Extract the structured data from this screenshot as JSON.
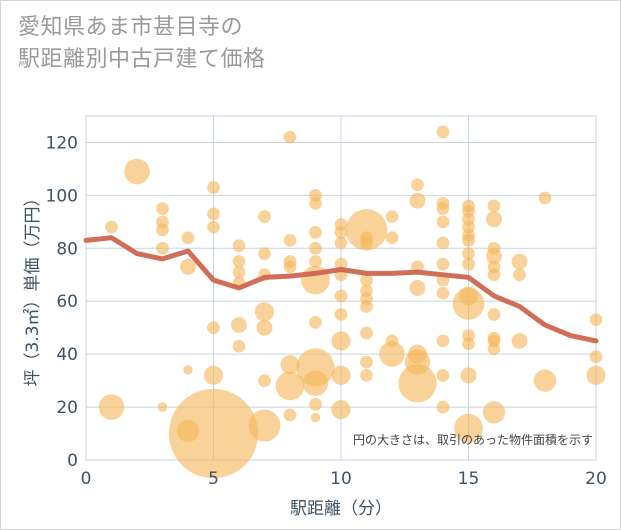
{
  "header": {
    "title_line1": "愛知県あま市甚目寺の",
    "title_line2": "駅距離別中古戸建て価格"
  },
  "colors": {
    "bubble": "#f5b75a",
    "line": "#d0654f",
    "grid": "#c8d4e0",
    "tick_text": "#3d5366"
  },
  "chart_data": {
    "type": "scatter",
    "title": "愛知県あま市甚目寺の駅距離別中古戸建て価格",
    "xlabel": "駅距離（分）",
    "ylabel": "坪（3.3㎡）単価（万円）",
    "xlim": [
      0,
      20
    ],
    "ylim": [
      0,
      130
    ],
    "x_ticks": [
      "0",
      "5",
      "10",
      "15",
      "20"
    ],
    "y_ticks": [
      "0",
      "20",
      "40",
      "60",
      "80",
      "100",
      "120"
    ],
    "annotation": "円の大きさは、取引のあった物件面積を示す",
    "series": [
      {
        "name": "trend",
        "type": "line",
        "x": [
          0,
          1,
          2,
          3,
          4,
          5,
          6,
          7,
          8,
          9,
          10,
          11,
          12,
          13,
          14,
          15,
          16,
          17,
          18,
          19,
          20
        ],
        "y": [
          83,
          84,
          78,
          76,
          79,
          68,
          65,
          69,
          69.5,
          70.5,
          72,
          70.5,
          70.5,
          71,
          70,
          69,
          62,
          58,
          51,
          47,
          45
        ]
      },
      {
        "name": "transactions",
        "type": "bubble",
        "points": [
          {
            "x": 1,
            "y": 88,
            "s": 2
          },
          {
            "x": 1,
            "y": 20,
            "s": 4
          },
          {
            "x": 2,
            "y": 109,
            "s": 4
          },
          {
            "x": 3,
            "y": 95,
            "s": 2
          },
          {
            "x": 3,
            "y": 90,
            "s": 2
          },
          {
            "x": 3,
            "y": 87,
            "s": 2
          },
          {
            "x": 3,
            "y": 80,
            "s": 2
          },
          {
            "x": 3,
            "y": 20,
            "s": 1.5
          },
          {
            "x": 4,
            "y": 84,
            "s": 2
          },
          {
            "x": 4,
            "y": 73,
            "s": 2.5
          },
          {
            "x": 4,
            "y": 34,
            "s": 1.5
          },
          {
            "x": 4,
            "y": 11,
            "s": 3.5
          },
          {
            "x": 5,
            "y": 103,
            "s": 2
          },
          {
            "x": 5,
            "y": 93,
            "s": 2
          },
          {
            "x": 5,
            "y": 88,
            "s": 2
          },
          {
            "x": 5,
            "y": 50,
            "s": 2
          },
          {
            "x": 5,
            "y": 32,
            "s": 3
          },
          {
            "x": 5,
            "y": 10,
            "s": 14
          },
          {
            "x": 6,
            "y": 81,
            "s": 2
          },
          {
            "x": 6,
            "y": 75,
            "s": 2
          },
          {
            "x": 6,
            "y": 71,
            "s": 2
          },
          {
            "x": 6,
            "y": 67,
            "s": 2
          },
          {
            "x": 6,
            "y": 51,
            "s": 2.5
          },
          {
            "x": 6,
            "y": 43,
            "s": 2
          },
          {
            "x": 7,
            "y": 92,
            "s": 2
          },
          {
            "x": 7,
            "y": 78,
            "s": 2
          },
          {
            "x": 7,
            "y": 70,
            "s": 2
          },
          {
            "x": 7,
            "y": 56,
            "s": 3
          },
          {
            "x": 7,
            "y": 50,
            "s": 2.5
          },
          {
            "x": 7,
            "y": 30,
            "s": 2
          },
          {
            "x": 7,
            "y": 13,
            "s": 5
          },
          {
            "x": 8,
            "y": 122,
            "s": 2
          },
          {
            "x": 8,
            "y": 83,
            "s": 2
          },
          {
            "x": 8,
            "y": 75,
            "s": 2
          },
          {
            "x": 8,
            "y": 73,
            "s": 2
          },
          {
            "x": 8,
            "y": 36,
            "s": 3
          },
          {
            "x": 8,
            "y": 28,
            "s": 4.5
          },
          {
            "x": 8,
            "y": 17,
            "s": 2
          },
          {
            "x": 9,
            "y": 100,
            "s": 2
          },
          {
            "x": 9,
            "y": 97,
            "s": 2
          },
          {
            "x": 9,
            "y": 86,
            "s": 2
          },
          {
            "x": 9,
            "y": 80,
            "s": 2
          },
          {
            "x": 9,
            "y": 75,
            "s": 2
          },
          {
            "x": 9,
            "y": 68,
            "s": 4.5
          },
          {
            "x": 9,
            "y": 52,
            "s": 2
          },
          {
            "x": 9,
            "y": 35,
            "s": 6
          },
          {
            "x": 9,
            "y": 29,
            "s": 4
          },
          {
            "x": 9,
            "y": 21,
            "s": 2
          },
          {
            "x": 9,
            "y": 16,
            "s": 1.5
          },
          {
            "x": 10,
            "y": 89,
            "s": 2
          },
          {
            "x": 10,
            "y": 86,
            "s": 2
          },
          {
            "x": 10,
            "y": 82,
            "s": 2
          },
          {
            "x": 10,
            "y": 74,
            "s": 2
          },
          {
            "x": 10,
            "y": 70,
            "s": 2
          },
          {
            "x": 10,
            "y": 62,
            "s": 2
          },
          {
            "x": 10,
            "y": 55,
            "s": 2
          },
          {
            "x": 10,
            "y": 45,
            "s": 3
          },
          {
            "x": 10,
            "y": 32,
            "s": 3
          },
          {
            "x": 10,
            "y": 19,
            "s": 3
          },
          {
            "x": 11,
            "y": 87,
            "s": 6.5
          },
          {
            "x": 11,
            "y": 84,
            "s": 2
          },
          {
            "x": 11,
            "y": 82,
            "s": 2
          },
          {
            "x": 11,
            "y": 68,
            "s": 2
          },
          {
            "x": 11,
            "y": 64,
            "s": 2
          },
          {
            "x": 11,
            "y": 61,
            "s": 2
          },
          {
            "x": 11,
            "y": 58,
            "s": 2
          },
          {
            "x": 11,
            "y": 48,
            "s": 2
          },
          {
            "x": 11,
            "y": 37,
            "s": 2
          },
          {
            "x": 11,
            "y": 32,
            "s": 2
          },
          {
            "x": 12,
            "y": 92,
            "s": 2
          },
          {
            "x": 12,
            "y": 84,
            "s": 2
          },
          {
            "x": 12,
            "y": 45,
            "s": 2
          },
          {
            "x": 12,
            "y": 40,
            "s": 4
          },
          {
            "x": 13,
            "y": 104,
            "s": 2
          },
          {
            "x": 13,
            "y": 98,
            "s": 2.5
          },
          {
            "x": 13,
            "y": 73,
            "s": 2
          },
          {
            "x": 13,
            "y": 65,
            "s": 2.5
          },
          {
            "x": 13,
            "y": 40,
            "s": 3
          },
          {
            "x": 13,
            "y": 37,
            "s": 4
          },
          {
            "x": 13,
            "y": 29,
            "s": 6
          },
          {
            "x": 14,
            "y": 124,
            "s": 2
          },
          {
            "x": 14,
            "y": 97,
            "s": 2
          },
          {
            "x": 14,
            "y": 95,
            "s": 2
          },
          {
            "x": 14,
            "y": 90,
            "s": 2
          },
          {
            "x": 14,
            "y": 82,
            "s": 2
          },
          {
            "x": 14,
            "y": 74,
            "s": 2
          },
          {
            "x": 14,
            "y": 68,
            "s": 2
          },
          {
            "x": 14,
            "y": 63,
            "s": 2
          },
          {
            "x": 14,
            "y": 45,
            "s": 2
          },
          {
            "x": 14,
            "y": 32,
            "s": 2
          },
          {
            "x": 14,
            "y": 20,
            "s": 2
          },
          {
            "x": 15,
            "y": 96,
            "s": 2
          },
          {
            "x": 15,
            "y": 94,
            "s": 2
          },
          {
            "x": 15,
            "y": 91,
            "s": 2
          },
          {
            "x": 15,
            "y": 88,
            "s": 2
          },
          {
            "x": 15,
            "y": 85,
            "s": 2
          },
          {
            "x": 15,
            "y": 83,
            "s": 2
          },
          {
            "x": 15,
            "y": 78,
            "s": 2
          },
          {
            "x": 15,
            "y": 74,
            "s": 2
          },
          {
            "x": 15,
            "y": 62,
            "s": 3
          },
          {
            "x": 15,
            "y": 59,
            "s": 5
          },
          {
            "x": 15,
            "y": 47,
            "s": 2
          },
          {
            "x": 15,
            "y": 44,
            "s": 2
          },
          {
            "x": 15,
            "y": 32,
            "s": 2.5
          },
          {
            "x": 15,
            "y": 12,
            "s": 4.5
          },
          {
            "x": 16,
            "y": 96,
            "s": 2
          },
          {
            "x": 16,
            "y": 91,
            "s": 2.5
          },
          {
            "x": 16,
            "y": 80,
            "s": 2
          },
          {
            "x": 16,
            "y": 77,
            "s": 2.5
          },
          {
            "x": 16,
            "y": 73,
            "s": 2
          },
          {
            "x": 16,
            "y": 70,
            "s": 2
          },
          {
            "x": 16,
            "y": 55,
            "s": 2
          },
          {
            "x": 16,
            "y": 46,
            "s": 2
          },
          {
            "x": 16,
            "y": 45,
            "s": 2
          },
          {
            "x": 16,
            "y": 42,
            "s": 2
          },
          {
            "x": 16,
            "y": 18,
            "s": 3.5
          },
          {
            "x": 17,
            "y": 75,
            "s": 2.5
          },
          {
            "x": 17,
            "y": 70,
            "s": 2
          },
          {
            "x": 17,
            "y": 45,
            "s": 2.5
          },
          {
            "x": 18,
            "y": 99,
            "s": 2
          },
          {
            "x": 18,
            "y": 30,
            "s": 3.5
          },
          {
            "x": 20,
            "y": 53,
            "s": 2
          },
          {
            "x": 20,
            "y": 39,
            "s": 2
          },
          {
            "x": 20,
            "y": 32,
            "s": 3
          }
        ]
      }
    ]
  }
}
